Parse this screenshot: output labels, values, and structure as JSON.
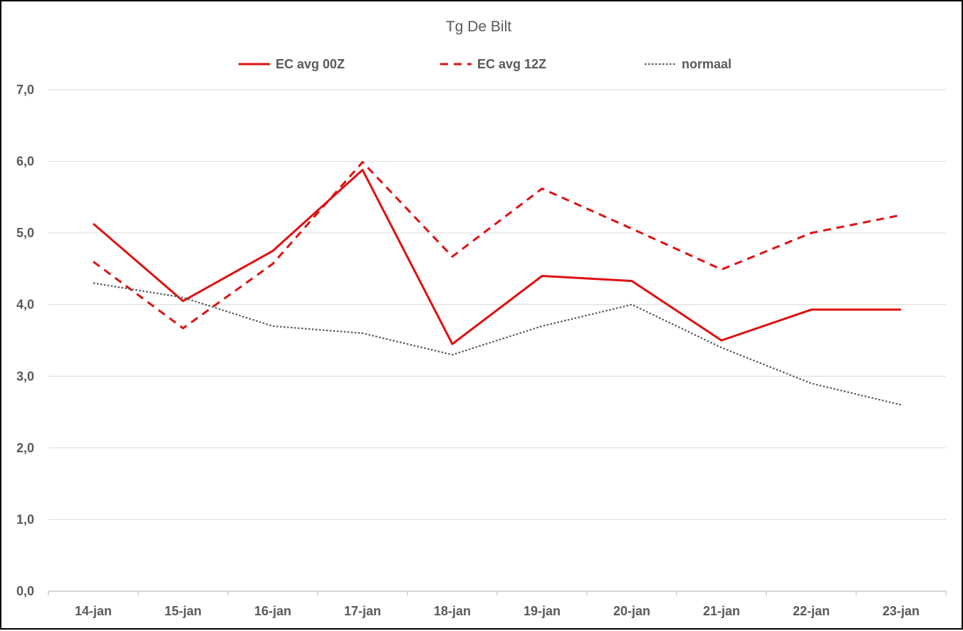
{
  "chart_data": {
    "type": "line",
    "title": "Tg De Bilt",
    "xlabel": "",
    "ylabel": "",
    "categories": [
      "14-jan",
      "15-jan",
      "16-jan",
      "17-jan",
      "18-jan",
      "19-jan",
      "20-jan",
      "21-jan",
      "22-jan",
      "23-jan"
    ],
    "ylim": [
      0,
      7
    ],
    "yticks": [
      "0,0",
      "1,0",
      "2,0",
      "3,0",
      "4,0",
      "5,0",
      "6,0",
      "7,0"
    ],
    "grid": true,
    "legend_position": "top",
    "series": [
      {
        "name": "EC avg 00Z",
        "color": "#e01010",
        "style": "solid",
        "values": [
          5.13,
          4.05,
          4.75,
          5.88,
          3.45,
          4.4,
          4.33,
          3.5,
          3.93,
          3.93
        ]
      },
      {
        "name": "EC avg 12Z",
        "color": "#e01010",
        "style": "dashed",
        "values": [
          4.6,
          3.67,
          4.57,
          5.99,
          4.67,
          5.62,
          5.06,
          4.49,
          5.0,
          5.25
        ]
      },
      {
        "name": "normaal",
        "color": "#595959",
        "style": "dotted",
        "values": [
          4.3,
          4.1,
          3.7,
          3.6,
          3.3,
          3.7,
          4.0,
          3.4,
          2.9,
          2.6
        ]
      }
    ]
  }
}
